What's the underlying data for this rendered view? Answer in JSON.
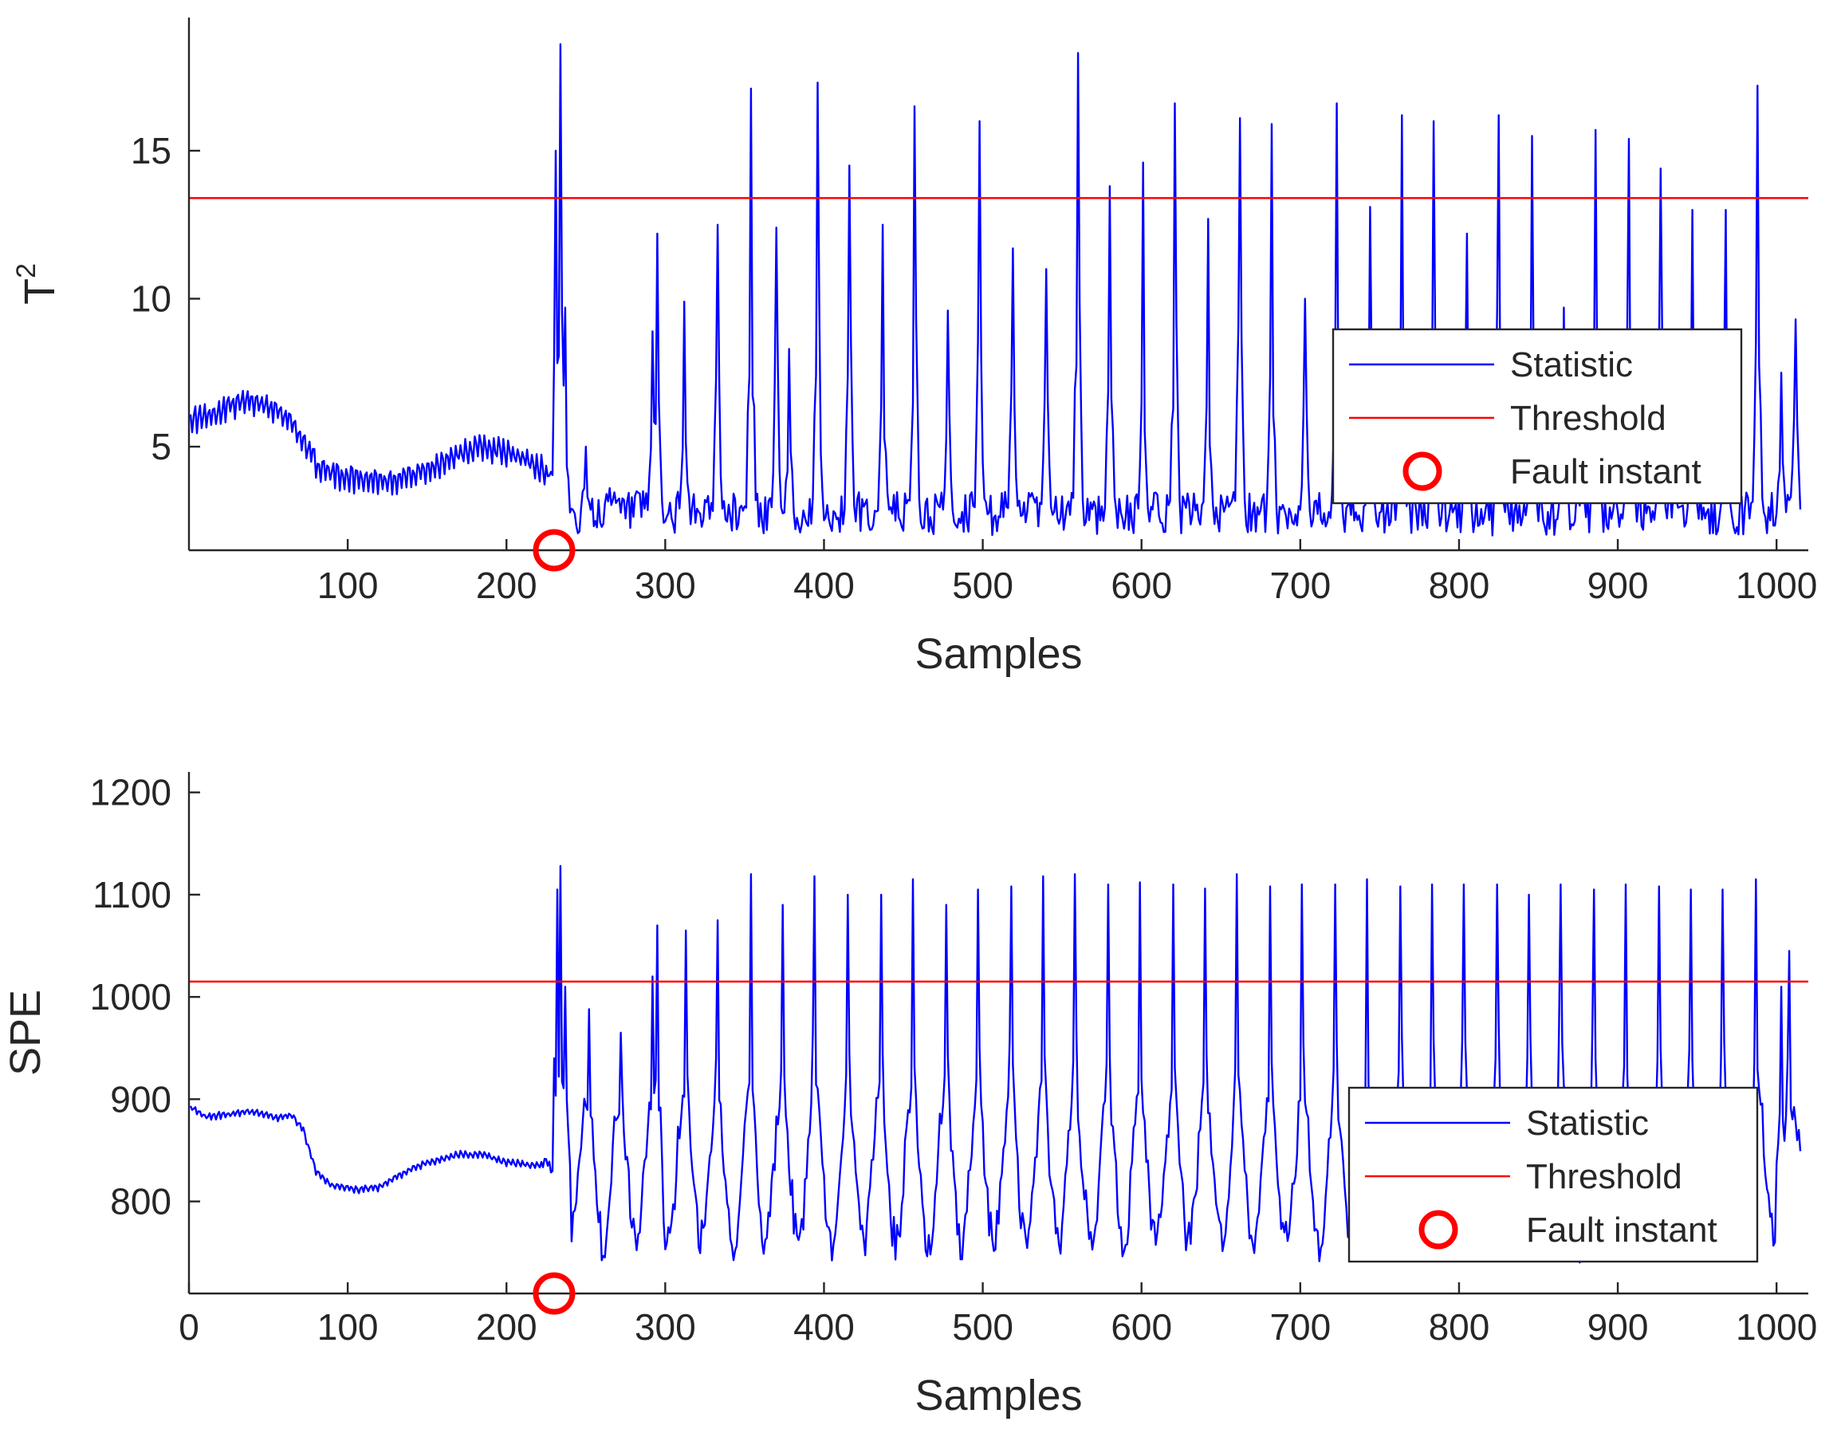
{
  "chart_data": [
    {
      "type": "line",
      "ylabel": "T",
      "ylabel_superscript": "2",
      "xlabel": "Samples",
      "xlim": [
        0,
        1020
      ],
      "ylim": [
        1.5,
        19.5
      ],
      "xticks": [
        "100",
        "200",
        "300",
        "400",
        "500",
        "600",
        "700",
        "800",
        "900",
        "1000"
      ],
      "yticks": [
        "5",
        "10",
        "15"
      ],
      "threshold": 13.4,
      "fault_instant": 230,
      "pre_fault_profile": [
        [
          0,
          5.9
        ],
        [
          12,
          6.0
        ],
        [
          25,
          6.4
        ],
        [
          35,
          6.5
        ],
        [
          45,
          6.5
        ],
        [
          55,
          6.3
        ],
        [
          65,
          5.8
        ],
        [
          75,
          4.9
        ],
        [
          82,
          4.3
        ],
        [
          90,
          4.1
        ],
        [
          110,
          3.9
        ],
        [
          130,
          3.9
        ],
        [
          150,
          4.2
        ],
        [
          170,
          4.8
        ],
        [
          185,
          5.0
        ],
        [
          200,
          4.8
        ],
        [
          215,
          4.5
        ],
        [
          225,
          4.1
        ]
      ],
      "post_fault_baseline": 2.6,
      "post_fault_lower": 2.0,
      "post_fault_upper": 3.5,
      "peaks": [
        {
          "x": 231,
          "y": 15.0
        },
        {
          "x": 234,
          "y": 18.6
        },
        {
          "x": 237,
          "y": 9.7
        },
        {
          "x": 250,
          "y": 5.0
        },
        {
          "x": 265,
          "y": 3.6
        },
        {
          "x": 292,
          "y": 8.9
        },
        {
          "x": 295,
          "y": 12.2
        },
        {
          "x": 312,
          "y": 9.9
        },
        {
          "x": 333,
          "y": 12.5
        },
        {
          "x": 354,
          "y": 17.1
        },
        {
          "x": 370,
          "y": 12.4
        },
        {
          "x": 378,
          "y": 8.3
        },
        {
          "x": 396,
          "y": 17.3
        },
        {
          "x": 416,
          "y": 14.5
        },
        {
          "x": 437,
          "y": 12.5
        },
        {
          "x": 457,
          "y": 16.5
        },
        {
          "x": 478,
          "y": 9.6
        },
        {
          "x": 498,
          "y": 16.0
        },
        {
          "x": 519,
          "y": 11.7
        },
        {
          "x": 540,
          "y": 11.0
        },
        {
          "x": 560,
          "y": 18.3
        },
        {
          "x": 580,
          "y": 13.8
        },
        {
          "x": 601,
          "y": 14.6
        },
        {
          "x": 621,
          "y": 16.6
        },
        {
          "x": 642,
          "y": 12.7
        },
        {
          "x": 662,
          "y": 16.1
        },
        {
          "x": 682,
          "y": 15.9
        },
        {
          "x": 703,
          "y": 10.0
        },
        {
          "x": 723,
          "y": 16.6
        },
        {
          "x": 744,
          "y": 13.1
        },
        {
          "x": 764,
          "y": 16.2
        },
        {
          "x": 784,
          "y": 16.0
        },
        {
          "x": 805,
          "y": 12.2
        },
        {
          "x": 825,
          "y": 16.2
        },
        {
          "x": 846,
          "y": 15.5
        },
        {
          "x": 866,
          "y": 9.7
        },
        {
          "x": 886,
          "y": 15.7
        },
        {
          "x": 907,
          "y": 15.4
        },
        {
          "x": 927,
          "y": 14.4
        },
        {
          "x": 947,
          "y": 13.0
        },
        {
          "x": 968,
          "y": 13.0
        },
        {
          "x": 988,
          "y": 17.2
        },
        {
          "x": 1003,
          "y": 7.5
        },
        {
          "x": 1012,
          "y": 9.3
        }
      ],
      "legend": {
        "location": "middle-right",
        "entries": [
          {
            "label": "Statistic",
            "style": "line",
            "color": "#0000ff"
          },
          {
            "label": "Threshold",
            "style": "line",
            "color": "#ff0000"
          },
          {
            "label": "Fault instant",
            "style": "circle",
            "color": "#ff0000"
          }
        ]
      }
    },
    {
      "type": "line",
      "ylabel": "SPE",
      "ylabel_superscript": "",
      "xlabel": "Samples",
      "xlim": [
        0,
        1020
      ],
      "ylim": [
        710,
        1220
      ],
      "xticks": [
        "0",
        "100",
        "200",
        "300",
        "400",
        "500",
        "600",
        "700",
        "800",
        "900",
        "1000"
      ],
      "yticks": [
        "800",
        "900",
        "1000",
        "1100",
        "1200"
      ],
      "threshold": 1015,
      "fault_instant": 230,
      "pre_fault_profile": [
        [
          0,
          893
        ],
        [
          10,
          883
        ],
        [
          25,
          885
        ],
        [
          40,
          888
        ],
        [
          55,
          882
        ],
        [
          65,
          884
        ],
        [
          72,
          870
        ],
        [
          80,
          830
        ],
        [
          90,
          815
        ],
        [
          105,
          812
        ],
        [
          120,
          814
        ],
        [
          135,
          828
        ],
        [
          150,
          838
        ],
        [
          170,
          846
        ],
        [
          185,
          846
        ],
        [
          200,
          838
        ],
        [
          215,
          836
        ],
        [
          223,
          835
        ]
      ],
      "post_fault_baseline": 830,
      "post_fault_lower": 760,
      "post_fault_upper": 900,
      "peaks": [
        {
          "x": 230,
          "y": 940
        },
        {
          "x": 232,
          "y": 1105
        },
        {
          "x": 234,
          "y": 1128
        },
        {
          "x": 237,
          "y": 1010
        },
        {
          "x": 252,
          "y": 988
        },
        {
          "x": 272,
          "y": 965
        },
        {
          "x": 292,
          "y": 1020
        },
        {
          "x": 295,
          "y": 1070
        },
        {
          "x": 313,
          "y": 1065
        },
        {
          "x": 333,
          "y": 1075
        },
        {
          "x": 354,
          "y": 1120
        },
        {
          "x": 374,
          "y": 1090
        },
        {
          "x": 394,
          "y": 1118
        },
        {
          "x": 415,
          "y": 1100
        },
        {
          "x": 436,
          "y": 1100
        },
        {
          "x": 456,
          "y": 1115
        },
        {
          "x": 477,
          "y": 1090
        },
        {
          "x": 497,
          "y": 1105
        },
        {
          "x": 518,
          "y": 1108
        },
        {
          "x": 538,
          "y": 1118
        },
        {
          "x": 558,
          "y": 1120
        },
        {
          "x": 579,
          "y": 1110
        },
        {
          "x": 599,
          "y": 1112
        },
        {
          "x": 620,
          "y": 1110
        },
        {
          "x": 640,
          "y": 1106
        },
        {
          "x": 660,
          "y": 1120
        },
        {
          "x": 681,
          "y": 1108
        },
        {
          "x": 701,
          "y": 1110
        },
        {
          "x": 722,
          "y": 1110
        },
        {
          "x": 742,
          "y": 1115
        },
        {
          "x": 763,
          "y": 1108
        },
        {
          "x": 783,
          "y": 1110
        },
        {
          "x": 803,
          "y": 1110
        },
        {
          "x": 824,
          "y": 1110
        },
        {
          "x": 844,
          "y": 1100
        },
        {
          "x": 864,
          "y": 1110
        },
        {
          "x": 885,
          "y": 1105
        },
        {
          "x": 905,
          "y": 1110
        },
        {
          "x": 926,
          "y": 1108
        },
        {
          "x": 946,
          "y": 1105
        },
        {
          "x": 966,
          "y": 1105
        },
        {
          "x": 987,
          "y": 1115
        },
        {
          "x": 1003,
          "y": 1010
        },
        {
          "x": 1008,
          "y": 1045
        },
        {
          "x": 1014,
          "y": 870
        }
      ],
      "legend": {
        "location": "bottom-right",
        "entries": [
          {
            "label": "Statistic",
            "style": "line",
            "color": "#0000ff"
          },
          {
            "label": "Threshold",
            "style": "line",
            "color": "#ff0000"
          },
          {
            "label": "Fault instant",
            "style": "circle",
            "color": "#ff0000"
          }
        ]
      }
    }
  ],
  "colors": {
    "statistic": "#0000ff",
    "threshold": "#ff0000",
    "fault_marker": "#ff0000",
    "axis": "#262626",
    "background": "#ffffff"
  }
}
